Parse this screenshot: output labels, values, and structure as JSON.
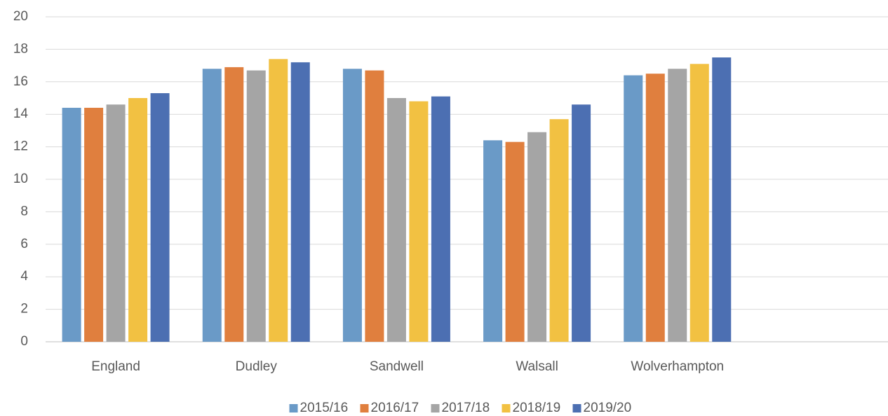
{
  "chart_data": {
    "type": "bar",
    "categories": [
      "England",
      "Dudley",
      "Sandwell",
      "Walsall",
      "Wolverhampton",
      null
    ],
    "series": [
      {
        "name": "2015/16",
        "color": "#6a9ac7",
        "values": [
          14.4,
          16.8,
          16.8,
          12.4,
          16.4,
          null
        ]
      },
      {
        "name": "2016/17",
        "color": "#e07f3e",
        "values": [
          14.4,
          16.9,
          16.7,
          12.3,
          16.5,
          null
        ]
      },
      {
        "name": "2017/18",
        "color": "#a5a5a5",
        "values": [
          14.6,
          16.7,
          15.0,
          12.9,
          16.8,
          null
        ]
      },
      {
        "name": "2018/19",
        "color": "#f2c142",
        "values": [
          15.0,
          17.4,
          14.8,
          13.7,
          17.1,
          null
        ]
      },
      {
        "name": "2019/20",
        "color": "#4c6fb2",
        "values": [
          15.3,
          17.2,
          15.1,
          14.6,
          17.5,
          null
        ]
      }
    ],
    "ylim": [
      0,
      20
    ],
    "yticks": [
      0,
      2,
      4,
      6,
      8,
      10,
      12,
      14,
      16,
      18,
      20
    ],
    "grid": true,
    "legend": "bottom"
  }
}
